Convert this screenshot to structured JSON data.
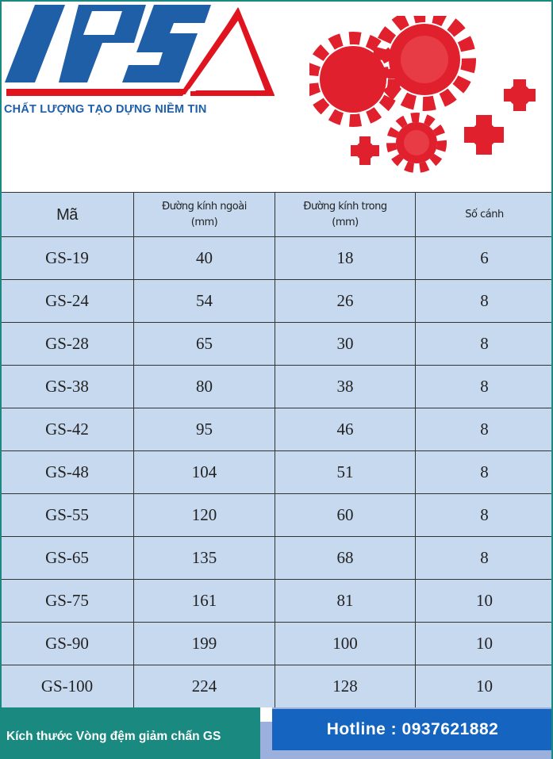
{
  "brand": {
    "logo_text": "IPS",
    "slogan": "CHẤT LƯỢNG TẠO DỰNG NIỀM TIN",
    "logo_blue": "#1f5fa8",
    "logo_red": "#e0141e"
  },
  "table": {
    "headers": [
      {
        "line1": "Mã",
        "line2": ""
      },
      {
        "line1": "Đường kính ngoài",
        "line2": "(mm)"
      },
      {
        "line1": "Đường kính trong",
        "line2": "(mm)"
      },
      {
        "line1": "Số cánh",
        "line2": ""
      }
    ],
    "rows": [
      [
        "GS-19",
        "40",
        "18",
        "6"
      ],
      [
        "GS-24",
        "54",
        "26",
        "8"
      ],
      [
        "GS-28",
        "65",
        "30",
        "8"
      ],
      [
        "GS-38",
        "80",
        "38",
        "8"
      ],
      [
        "GS-42",
        "95",
        "46",
        "8"
      ],
      [
        "GS-48",
        "104",
        "51",
        "8"
      ],
      [
        "GS-55",
        "120",
        "60",
        "8"
      ],
      [
        "GS-65",
        "135",
        "68",
        "8"
      ],
      [
        "GS-75",
        "161",
        "81",
        "10"
      ],
      [
        "GS-90",
        "199",
        "100",
        "10"
      ],
      [
        "GS-100",
        "224",
        "128",
        "10"
      ]
    ]
  },
  "footer": {
    "caption": "Kích thước Vòng đệm giảm chấn GS",
    "hotline": "Hotline : 0937621882"
  },
  "colors": {
    "table_bg": "#c6d9ef",
    "teal": "#1a8a80",
    "blue": "#1565c0",
    "product_red": "#e0202c"
  }
}
